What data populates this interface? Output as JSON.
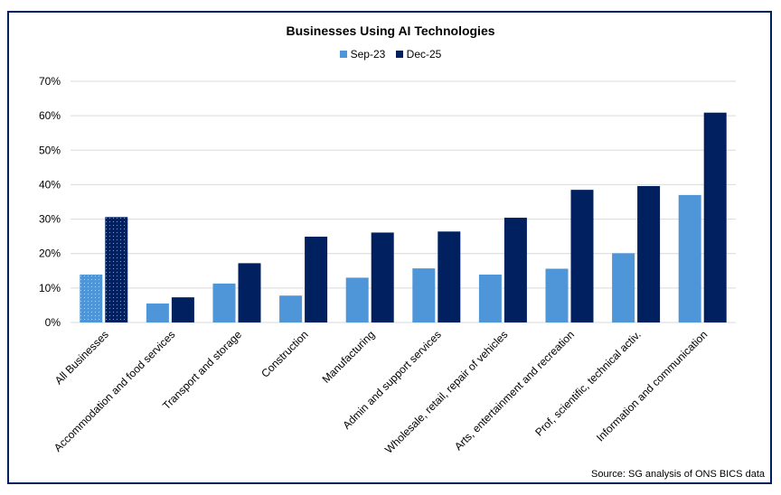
{
  "chart_data": {
    "type": "bar",
    "title": "Businesses Using AI Technologies",
    "categories": [
      "All Businesses",
      "Accommodation and food services",
      "Transport and storage",
      "Construction",
      "Manufacturing",
      "Admin and support services",
      "Wholesale, retail, repair of vehicles",
      "Arts, entertainment and recreation",
      "Prof, scientific, technical activ.",
      "Information and communication"
    ],
    "series": [
      {
        "name": "Sep-23",
        "color": "#4f96d9",
        "values": [
          13.9,
          5.5,
          11.3,
          7.8,
          13.0,
          15.7,
          13.9,
          15.6,
          20.1,
          37.0
        ]
      },
      {
        "name": "Dec-25",
        "color": "#002060",
        "values": [
          30.6,
          7.3,
          17.2,
          24.9,
          26.1,
          26.4,
          30.4,
          38.5,
          39.6,
          60.9
        ]
      }
    ],
    "highlighted_category": "All Businesses",
    "ylim": [
      0,
      70
    ],
    "yticks": [
      "0%",
      "10%",
      "20%",
      "30%",
      "40%",
      "50%",
      "60%",
      "70%"
    ],
    "grid": true,
    "legend_position": "top",
    "source": "Source: SG analysis of ONS BICS data"
  }
}
